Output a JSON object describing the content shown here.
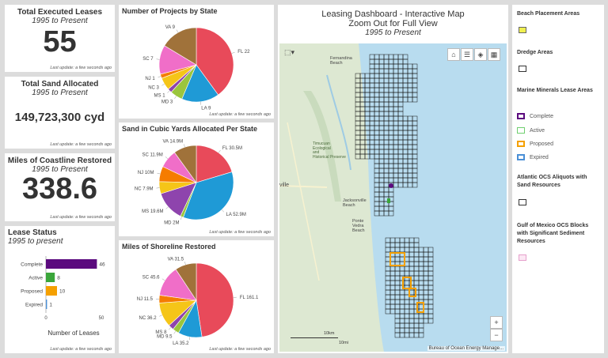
{
  "kpi1": {
    "title": "Total Executed Leases",
    "subtitle": "1995 to Present",
    "value": "55",
    "updated": "Last update: a few seconds ago"
  },
  "kpi2": {
    "title": "Total Sand Allocated",
    "subtitle": "1995 to Present",
    "value": "149,723,300 cyd",
    "updated": "Last update: a few seconds ago"
  },
  "kpi3": {
    "title": "Miles of Coastline Restored",
    "subtitle": "1995 to Present",
    "value": "338.6",
    "updated": "Last update: a few seconds ago"
  },
  "lease_status": {
    "title": "Lease Status",
    "subtitle": "1995 to present",
    "xlabel": "Number of Leases",
    "updated": "Last update: a few seconds ago"
  },
  "projects_pie": {
    "title": "Number of Projects by State",
    "updated": "Last update: a few seconds ago"
  },
  "sand_pie": {
    "title": "Sand in Cubic Yards Allocated Per State",
    "updated": "Last update: a few seconds ago"
  },
  "shore_pie": {
    "title": "Miles of Shoreline Restored",
    "updated": "Last update: a few seconds ago"
  },
  "map": {
    "title_line1": "Leasing Dashboard - Interactive Map",
    "title_line2": "Zoom Out for Full View",
    "subtitle": "1995 to Present",
    "scale_km": "10km",
    "scale_mi": "10mi",
    "attribution": "Bureau of Ocean Energy Manage...",
    "zoom_in": "+",
    "zoom_out": "−",
    "places": {
      "fernandina": "Fernandina\nBeach",
      "timucuan": "Timucuan\nEcological\nand\nHistorical Preserve",
      "jacksonville": "Jacksonville\nBeach",
      "ponte": "Ponte\nVedra\nBeach",
      "ville": "ville"
    }
  },
  "legend": {
    "beach": "Beach Placement Areas",
    "dredge": "Dredge Areas",
    "marine": "Marine Minerals Lease Areas",
    "complete": "Complete",
    "active": "Active",
    "proposed": "Proposed",
    "expired": "Expired",
    "atlantic": "Atlantic OCS Aliquots with Sand Resources",
    "gulf": "Gulf of Mexico OCS Blocks with Significant Sediment Resources"
  },
  "colors": {
    "purple": "#5b0a7e",
    "green": "#3aa63a",
    "orange": "#f5a000",
    "blue": "#4a8fd6"
  },
  "chart_data": [
    {
      "type": "bar",
      "title": "Lease Status",
      "orientation": "horizontal",
      "categories": [
        "Complete",
        "Active",
        "Proposed",
        "Expired"
      ],
      "values": [
        46,
        8,
        10,
        1
      ],
      "colors": [
        "#5b0a7e",
        "#3aa63a",
        "#f5a000",
        "#4a8fd6"
      ],
      "xlabel": "Number of Leases",
      "xlim": [
        0,
        50
      ],
      "ticks": [
        0,
        50
      ]
    },
    {
      "type": "pie",
      "title": "Number of Projects by State",
      "labels": [
        "FL",
        "LA",
        "MD",
        "MS",
        "NC",
        "NJ",
        "SC",
        "VA"
      ],
      "label_text": [
        "FL 22",
        "LA 9",
        "MD 3",
        "MS 1",
        "NC 3",
        "NJ 1",
        "SC 7",
        "VA 9"
      ],
      "values": [
        22,
        9,
        3,
        1,
        3,
        1,
        7,
        9
      ],
      "colors": [
        "#e84a5a",
        "#1f9ad6",
        "#9bc53d",
        "#8e44ad",
        "#f5c518",
        "#f57c00",
        "#f06ec8",
        "#a0723a"
      ]
    },
    {
      "type": "pie",
      "title": "Sand in Cubic Yards Allocated Per State",
      "labels": [
        "FL",
        "LA",
        "MD",
        "MS",
        "NC",
        "NJ",
        "SC",
        "VA"
      ],
      "label_text": [
        "FL 30.5M",
        "LA 52.9M",
        "MD 2M",
        "MS 19.6M",
        "NC 7.9M",
        "NJ 10M",
        "SC 11.9M",
        "VA 14.9M"
      ],
      "values": [
        30.5,
        52.9,
        2,
        19.6,
        7.9,
        10,
        11.9,
        14.9
      ],
      "colors": [
        "#e84a5a",
        "#1f9ad6",
        "#9bc53d",
        "#8e44ad",
        "#f5c518",
        "#f57c00",
        "#f06ec8",
        "#a0723a"
      ]
    },
    {
      "type": "pie",
      "title": "Miles of Shoreline Restored",
      "labels": [
        "FL",
        "LA",
        "MD",
        "MS",
        "NC",
        "NJ",
        "SC",
        "VA"
      ],
      "label_text": [
        "FL 161.1",
        "LA 35.2",
        "MD 9.5",
        "MS 8",
        "NC 36.2",
        "NJ 11.5",
        "SC 45.6",
        "VA 31.5"
      ],
      "values": [
        161.1,
        35.2,
        9.5,
        8,
        36.2,
        11.5,
        45.6,
        31.5
      ],
      "colors": [
        "#e84a5a",
        "#1f9ad6",
        "#9bc53d",
        "#8e44ad",
        "#f5c518",
        "#f57c00",
        "#f06ec8",
        "#a0723a"
      ]
    }
  ]
}
